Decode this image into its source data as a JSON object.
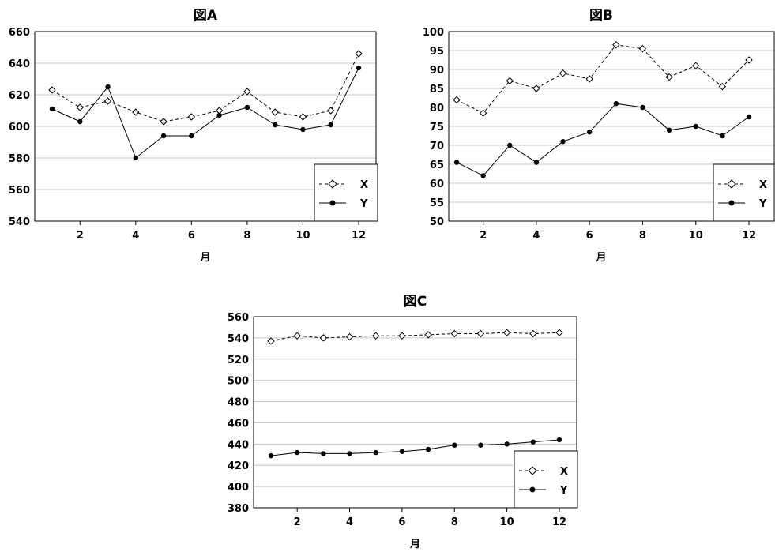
{
  "chart_data": [
    {
      "type": "line",
      "title": "図A",
      "xlabel": "月",
      "ylabel": "",
      "x": [
        1,
        2,
        3,
        4,
        5,
        6,
        7,
        8,
        9,
        10,
        11,
        12
      ],
      "xticks": [
        2,
        4,
        6,
        8,
        10,
        12
      ],
      "ylim": [
        540,
        660
      ],
      "yticks": [
        540,
        560,
        580,
        600,
        620,
        640,
        660
      ],
      "grid": "horizontal",
      "legend_position": "bottom-right",
      "series": [
        {
          "name": "X",
          "style": "dashed",
          "marker": "diamond-open",
          "values": [
            623,
            612,
            616,
            609,
            603,
            606,
            610,
            622,
            609,
            606,
            610,
            646
          ]
        },
        {
          "name": "Y",
          "style": "solid",
          "marker": "circle-filled",
          "values": [
            611,
            603,
            625,
            580,
            594,
            594,
            607,
            612,
            601,
            598,
            601,
            637
          ]
        }
      ]
    },
    {
      "type": "line",
      "title": "図B",
      "xlabel": "月",
      "ylabel": "",
      "x": [
        1,
        2,
        3,
        4,
        5,
        6,
        7,
        8,
        9,
        10,
        11,
        12
      ],
      "xticks": [
        2,
        4,
        6,
        8,
        10,
        12
      ],
      "ylim": [
        50,
        100
      ],
      "yticks": [
        50,
        55,
        60,
        65,
        70,
        75,
        80,
        85,
        90,
        95,
        100
      ],
      "grid": "horizontal",
      "legend_position": "bottom-right",
      "series": [
        {
          "name": "X",
          "style": "dashed",
          "marker": "diamond-open",
          "values": [
            82,
            78.5,
            87,
            85,
            89,
            87.5,
            96.5,
            95.5,
            88,
            91,
            85.5,
            92.5
          ]
        },
        {
          "name": "Y",
          "style": "solid",
          "marker": "circle-filled",
          "values": [
            65.5,
            62,
            70,
            65.5,
            71,
            73.5,
            81,
            80,
            74,
            75,
            72.5,
            77.5
          ]
        }
      ]
    },
    {
      "type": "line",
      "title": "図C",
      "xlabel": "月",
      "ylabel": "",
      "x": [
        1,
        2,
        3,
        4,
        5,
        6,
        7,
        8,
        9,
        10,
        11,
        12
      ],
      "xticks": [
        2,
        4,
        6,
        8,
        10,
        12
      ],
      "ylim": [
        380,
        560
      ],
      "yticks": [
        380,
        400,
        420,
        440,
        460,
        480,
        500,
        520,
        540,
        560
      ],
      "grid": "horizontal",
      "legend_position": "bottom-right",
      "series": [
        {
          "name": "X",
          "style": "dashed",
          "marker": "diamond-open",
          "values": [
            537,
            542,
            540,
            541,
            542,
            542,
            543,
            544,
            544,
            545,
            544,
            545
          ]
        },
        {
          "name": "Y",
          "style": "solid",
          "marker": "circle-filled",
          "values": [
            429,
            432,
            431,
            431,
            432,
            433,
            435,
            439,
            439,
            440,
            442,
            444
          ]
        }
      ]
    }
  ]
}
